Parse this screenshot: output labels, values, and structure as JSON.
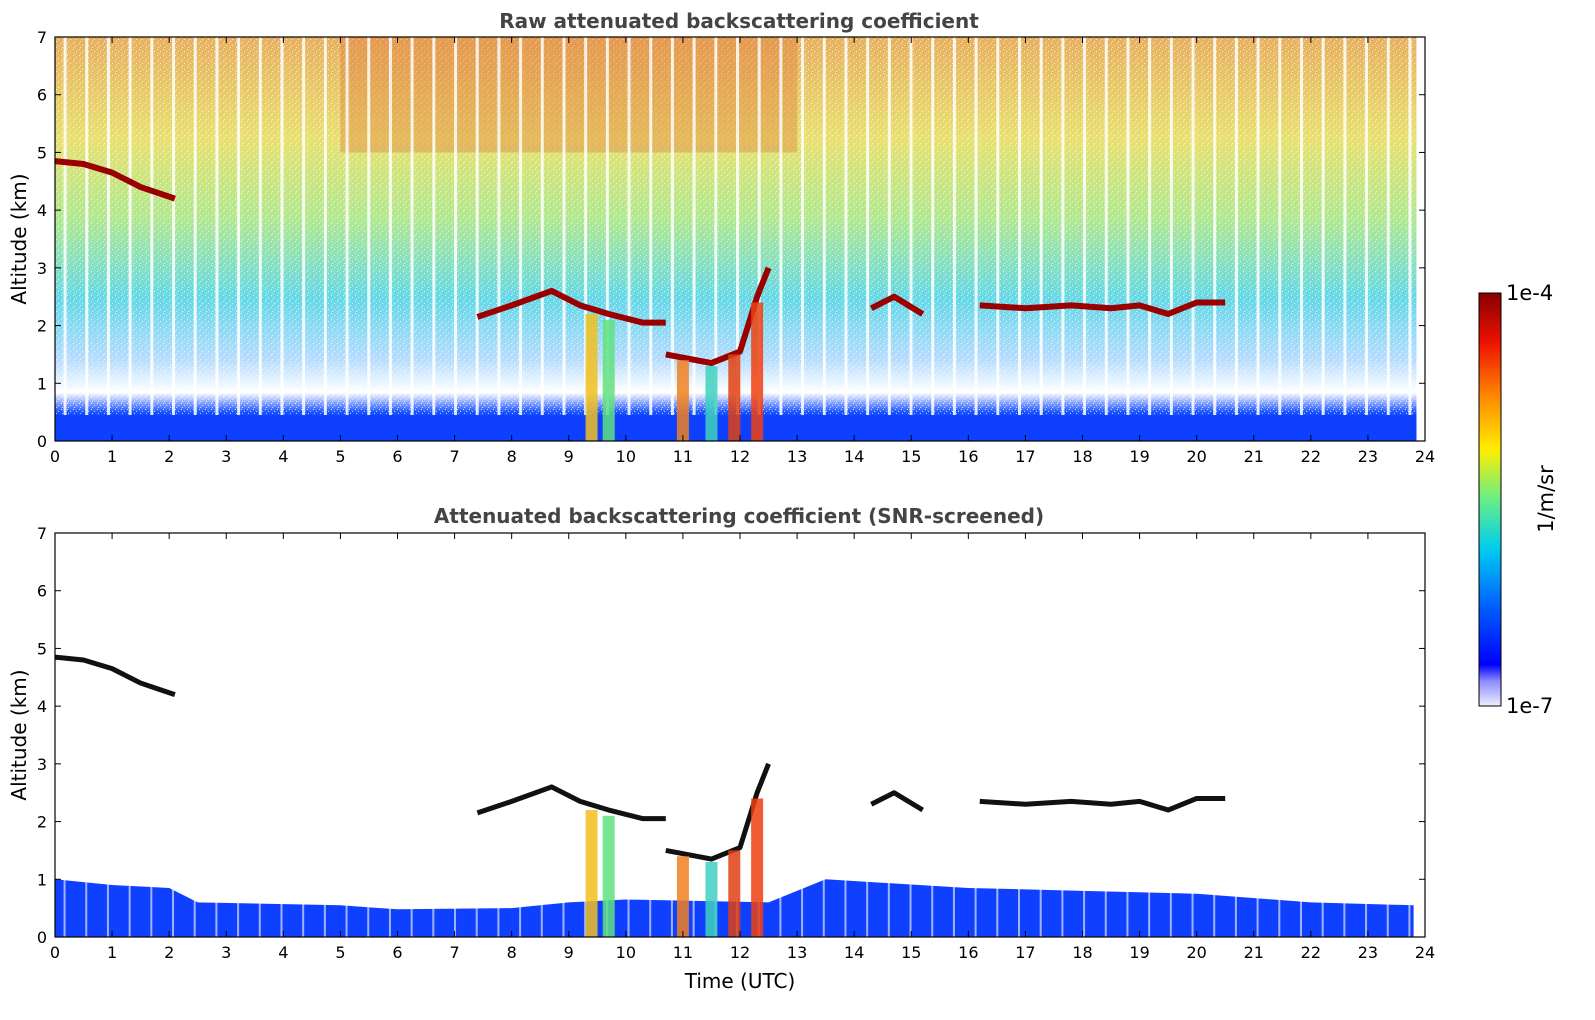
{
  "chart_data": [
    {
      "type": "heatmap",
      "title": "Raw attenuated backscattering coefficient",
      "xlabel": "",
      "ylabel": "Altitude (km)",
      "xlim": [
        0,
        24
      ],
      "ylim": [
        0,
        7
      ],
      "xticks": [
        "0",
        "1",
        "2",
        "3",
        "4",
        "5",
        "6",
        "7",
        "8",
        "9",
        "10",
        "11",
        "12",
        "13",
        "14",
        "15",
        "16",
        "17",
        "18",
        "19",
        "20",
        "21",
        "22",
        "23",
        "24"
      ],
      "yticks": [
        "0",
        "1",
        "2",
        "3",
        "4",
        "5",
        "6",
        "7"
      ],
      "data_end_time": 23.85,
      "features": [
        {
          "kind": "boundary-layer",
          "top_km": 0.45
        },
        {
          "kind": "cloud-layer",
          "points": [
            [
              0,
              4.85
            ],
            [
              0.5,
              4.8
            ],
            [
              1,
              4.65
            ],
            [
              1.5,
              4.4
            ],
            [
              1.8,
              4.3
            ],
            [
              2.1,
              4.2
            ]
          ]
        },
        {
          "kind": "cloud-layer",
          "points": [
            [
              7.4,
              2.15
            ],
            [
              8,
              2.35
            ],
            [
              8.7,
              2.6
            ],
            [
              9.2,
              2.35
            ],
            [
              9.7,
              2.2
            ],
            [
              10.3,
              2.05
            ],
            [
              10.7,
              2.05
            ]
          ]
        },
        {
          "kind": "cloud-layer",
          "points": [
            [
              10.7,
              1.5
            ],
            [
              11.5,
              1.35
            ],
            [
              12.0,
              1.55
            ],
            [
              12.3,
              2.5
            ],
            [
              12.5,
              3.0
            ]
          ]
        },
        {
          "kind": "cloud-layer",
          "points": [
            [
              14.3,
              2.3
            ],
            [
              14.7,
              2.5
            ],
            [
              15.2,
              2.2
            ]
          ]
        },
        {
          "kind": "cloud-layer",
          "points": [
            [
              16.2,
              2.35
            ],
            [
              17,
              2.3
            ],
            [
              17.8,
              2.35
            ],
            [
              18.5,
              2.3
            ],
            [
              19,
              2.35
            ],
            [
              19.5,
              2.2
            ],
            [
              20,
              2.4
            ],
            [
              20.5,
              2.4
            ]
          ]
        }
      ]
    },
    {
      "type": "heatmap",
      "title": "Attenuated backscattering coefficient (SNR-screened)",
      "xlabel": "Time (UTC)",
      "ylabel": "Altitude (km)",
      "xlim": [
        0,
        24
      ],
      "ylim": [
        0,
        7
      ],
      "xticks": [
        "0",
        "1",
        "2",
        "3",
        "4",
        "5",
        "6",
        "7",
        "8",
        "9",
        "10",
        "11",
        "12",
        "13",
        "14",
        "15",
        "16",
        "17",
        "18",
        "19",
        "20",
        "21",
        "22",
        "23",
        "24"
      ],
      "yticks": [
        "0",
        "1",
        "2",
        "3",
        "4",
        "5",
        "6",
        "7"
      ],
      "boundary_layer_top_km": [
        [
          0,
          1.0
        ],
        [
          1,
          0.9
        ],
        [
          2,
          0.85
        ],
        [
          2.5,
          0.6
        ],
        [
          5,
          0.55
        ],
        [
          6,
          0.48
        ],
        [
          8,
          0.5
        ],
        [
          9,
          0.6
        ],
        [
          10,
          0.65
        ],
        [
          12.5,
          0.6
        ],
        [
          13.5,
          1.0
        ],
        [
          16,
          0.85
        ],
        [
          18,
          0.8
        ],
        [
          20,
          0.75
        ],
        [
          22,
          0.6
        ],
        [
          23.8,
          0.55
        ]
      ],
      "colorbar": {
        "label": "1/m/sr",
        "min_label": "1e-7",
        "max_label": "1e-4",
        "scale": "log"
      }
    }
  ]
}
